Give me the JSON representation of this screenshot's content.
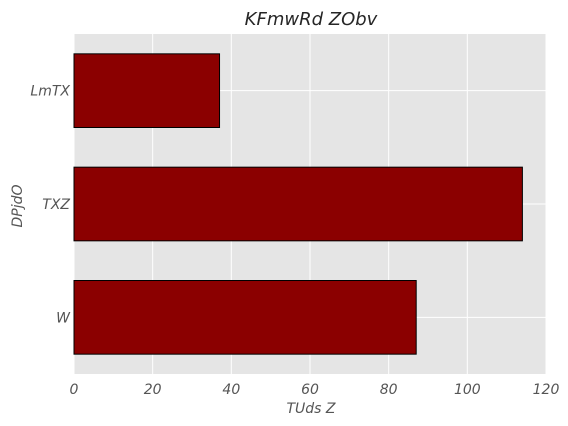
{
  "chart_data": {
    "type": "bar",
    "orientation": "horizontal",
    "title": "KFmwRd ZObv",
    "xlabel": "TUds Z",
    "ylabel": "DPjdO",
    "categories": [
      "W",
      "TXZ",
      "LmTX"
    ],
    "values": [
      87,
      114,
      37
    ],
    "xlim": [
      0,
      120
    ],
    "xticks": [
      0,
      20,
      40,
      60,
      80,
      100,
      120
    ],
    "grid": true,
    "colors": {
      "bar": "#8b0000",
      "bar_edge": "#000000",
      "plot_background": "#e5e5e5",
      "grid": "#ffffff"
    }
  }
}
